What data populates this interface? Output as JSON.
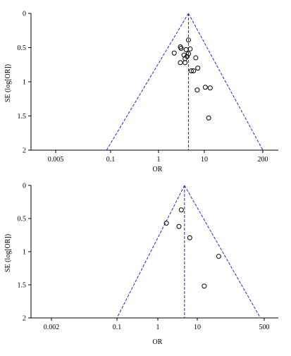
{
  "chart_data": [
    {
      "type": "scatter",
      "subtype": "funnel",
      "title": "",
      "xlabel": "OR",
      "ylabel": "SE (log[OR])",
      "xscale": "log",
      "xlim": [
        0.0025,
        400
      ],
      "ylim": [
        0,
        2
      ],
      "y_inverted": true,
      "xticks": [
        0.005,
        0.1,
        1,
        10,
        200
      ],
      "xtick_labels": [
        "0.005",
        "0.1",
        "1",
        "10",
        "200"
      ],
      "yticks": [
        0,
        0.5,
        1,
        1.5,
        2
      ],
      "ytick_labels": [
        "0",
        "0.5",
        "1",
        "1.5",
        "2"
      ],
      "pooled_or": 4.5,
      "funnel_base_or": [
        0.08,
        200
      ],
      "points": [
        {
          "x": 4.5,
          "y": 0.39
        },
        {
          "x": 3.0,
          "y": 0.49
        },
        {
          "x": 3.1,
          "y": 0.51
        },
        {
          "x": 4.9,
          "y": 0.52
        },
        {
          "x": 4.0,
          "y": 0.53
        },
        {
          "x": 2.2,
          "y": 0.58
        },
        {
          "x": 4.5,
          "y": 0.59
        },
        {
          "x": 3.6,
          "y": 0.61
        },
        {
          "x": 4.2,
          "y": 0.63
        },
        {
          "x": 6.5,
          "y": 0.65
        },
        {
          "x": 3.8,
          "y": 0.66
        },
        {
          "x": 3.0,
          "y": 0.72
        },
        {
          "x": 3.8,
          "y": 0.72
        },
        {
          "x": 7.2,
          "y": 0.8
        },
        {
          "x": 5.2,
          "y": 0.84
        },
        {
          "x": 5.8,
          "y": 0.84
        },
        {
          "x": 10.5,
          "y": 1.08
        },
        {
          "x": 13.5,
          "y": 1.09
        },
        {
          "x": 7.0,
          "y": 1.12
        },
        {
          "x": 12.5,
          "y": 1.53
        }
      ],
      "colors": {
        "funnel": "#2b2bb0",
        "points": "#000000"
      }
    },
    {
      "type": "scatter",
      "subtype": "funnel",
      "title": "",
      "xlabel": "OR",
      "ylabel": "SE (log[OR])",
      "xscale": "log",
      "xlim": [
        0.001,
        1000
      ],
      "ylim": [
        0,
        2
      ],
      "y_inverted": true,
      "xticks": [
        0.002,
        0.1,
        10,
        500
      ],
      "xtick_labels": [
        "0.002",
        "0.1",
        "10",
        "500"
      ],
      "extra_tick_labels": [
        {
          "x": 1.8,
          "label": "1"
        }
      ],
      "yticks": [
        0,
        0.5,
        1,
        1.5,
        2
      ],
      "ytick_labels": [
        "0",
        "0.5",
        "1",
        "1.5",
        "2"
      ],
      "pooled_or": 4.8,
      "funnel_base_or": [
        0.1,
        400
      ],
      "points": [
        {
          "x": 4.0,
          "y": 0.37
        },
        {
          "x": 1.7,
          "y": 0.57
        },
        {
          "x": 3.5,
          "y": 0.62
        },
        {
          "x": 6.5,
          "y": 0.79
        },
        {
          "x": 35,
          "y": 1.07
        },
        {
          "x": 15,
          "y": 1.52
        }
      ],
      "colors": {
        "funnel": "#2b2bb0",
        "points": "#000000"
      }
    }
  ]
}
